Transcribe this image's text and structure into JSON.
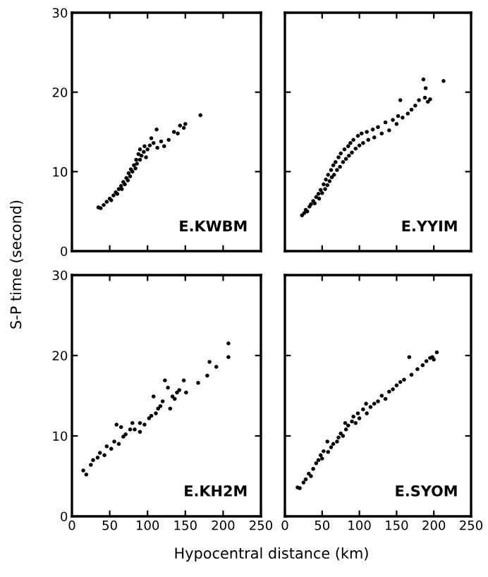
{
  "chart_data": [
    {
      "type": "scatter",
      "ylabel": "S-P time (second)",
      "annotations": [
        "E.KWBM"
      ],
      "xlim": [
        0,
        250
      ],
      "ylim": [
        0,
        30
      ],
      "xticks": [
        0,
        50,
        100,
        150,
        200,
        250
      ],
      "yticks": [
        0,
        10,
        20,
        30
      ],
      "tick_labels": "y",
      "marker": "circle",
      "grid": false,
      "series": [
        {
          "color": "#000000",
          "x": [
            35,
            38,
            42,
            46,
            50,
            52,
            55,
            58,
            60,
            62,
            65,
            66,
            68,
            70,
            72,
            74,
            75,
            77,
            78,
            80,
            82,
            84,
            85,
            86,
            88,
            90,
            90,
            92,
            95,
            96,
            98,
            100,
            103,
            105,
            108,
            112,
            113,
            118,
            122,
            128,
            135,
            140,
            143,
            148,
            150,
            170
          ],
          "values": [
            5.5,
            5.4,
            5.8,
            6.2,
            6.6,
            6.4,
            7.0,
            7.4,
            7.2,
            7.8,
            8.2,
            7.8,
            8.7,
            8.4,
            9.2,
            8.9,
            9.8,
            9.4,
            10.3,
            10.0,
            10.8,
            10.4,
            11.5,
            11.0,
            12.2,
            11.5,
            12.8,
            12.0,
            12.5,
            13.2,
            11.8,
            12.8,
            13.3,
            14.2,
            13.6,
            15.3,
            13.0,
            13.8,
            13.2,
            14.0,
            15.0,
            14.8,
            15.8,
            15.5,
            16.0,
            17.1
          ]
        }
      ]
    },
    {
      "type": "scatter",
      "annotations": [
        "E.YYIM"
      ],
      "xlim": [
        0,
        250
      ],
      "ylim": [
        0,
        30
      ],
      "xticks": [
        0,
        50,
        100,
        150,
        200,
        250
      ],
      "yticks": [
        0,
        10,
        20,
        30
      ],
      "tick_labels": false,
      "marker": "circle",
      "grid": false,
      "series": [
        {
          "color": "#000000",
          "x": [
            23,
            26,
            28,
            30,
            33,
            35,
            38,
            40,
            42,
            45,
            46,
            48,
            50,
            52,
            54,
            55,
            57,
            58,
            60,
            62,
            63,
            65,
            66,
            68,
            70,
            72,
            74,
            75,
            78,
            80,
            82,
            85,
            86,
            88,
            90,
            92,
            95,
            98,
            100,
            103,
            105,
            110,
            112,
            118,
            120,
            125,
            130,
            135,
            140,
            145,
            150,
            152,
            155,
            158,
            165,
            170,
            175,
            180,
            186,
            188,
            189,
            192,
            195,
            213
          ],
          "values": [
            4.5,
            4.8,
            5.2,
            5.0,
            5.6,
            5.9,
            6.3,
            6.0,
            6.8,
            7.2,
            6.6,
            7.7,
            7.3,
            8.4,
            7.8,
            9.0,
            8.3,
            9.6,
            8.8,
            10.2,
            9.3,
            10.8,
            9.6,
            11.2,
            10.2,
            11.8,
            10.6,
            12.3,
            11.2,
            12.8,
            11.6,
            13.2,
            12.0,
            13.6,
            12.4,
            14.0,
            12.9,
            14.5,
            13.3,
            14.8,
            13.6,
            15.0,
            14.0,
            15.3,
            14.3,
            15.6,
            14.8,
            16.2,
            15.2,
            16.5,
            16.0,
            17.0,
            19.0,
            16.8,
            17.3,
            17.8,
            18.3,
            19.0,
            21.6,
            19.3,
            20.5,
            18.8,
            19.1,
            21.4
          ]
        }
      ]
    },
    {
      "type": "scatter",
      "xlabel": "Hypocentral distance (km)",
      "annotations": [
        "E.KH2M"
      ],
      "xlim": [
        0,
        250
      ],
      "ylim": [
        0,
        30
      ],
      "xticks": [
        0,
        50,
        100,
        150,
        200,
        250
      ],
      "yticks": [
        0,
        10,
        20,
        30
      ],
      "marker": "circle",
      "grid": false,
      "series": [
        {
          "color": "#000000",
          "x": [
            15,
            19,
            25,
            28,
            34,
            37,
            43,
            46,
            52,
            56,
            59,
            62,
            65,
            68,
            71,
            77,
            80,
            83,
            90,
            90,
            96,
            102,
            105,
            108,
            111,
            114,
            117,
            120,
            123,
            127,
            130,
            133,
            136,
            139,
            142,
            148,
            151,
            167,
            179,
            182,
            191,
            207,
            207
          ],
          "values": [
            5.7,
            5.2,
            6.4,
            7.0,
            7.3,
            7.9,
            7.6,
            8.7,
            8.4,
            9.3,
            11.4,
            9.0,
            11.1,
            9.9,
            10.2,
            10.8,
            11.6,
            10.8,
            11.6,
            10.5,
            11.4,
            12.2,
            12.5,
            14.9,
            12.8,
            13.4,
            13.7,
            14.3,
            16.9,
            16.0,
            13.4,
            14.9,
            14.6,
            15.4,
            15.7,
            16.9,
            15.4,
            16.6,
            17.5,
            19.2,
            18.6,
            21.5,
            19.8
          ]
        }
      ]
    },
    {
      "type": "scatter",
      "annotations": [
        "E.SYOM"
      ],
      "xlim": [
        0,
        250
      ],
      "ylim": [
        0,
        30
      ],
      "xticks": [
        0,
        50,
        100,
        150,
        200,
        250
      ],
      "yticks": [
        0,
        10,
        20,
        30
      ],
      "tick_labels": "x",
      "marker": "circle",
      "grid": false,
      "series": [
        {
          "color": "#000000",
          "x": [
            17,
            20,
            25,
            28,
            32,
            35,
            38,
            42,
            45,
            48,
            50,
            52,
            57,
            58,
            62,
            65,
            70,
            72,
            75,
            78,
            81,
            82,
            85,
            90,
            92,
            95,
            98,
            100,
            105,
            109,
            110,
            115,
            120,
            125,
            130,
            135,
            140,
            145,
            150,
            155,
            160,
            167,
            170,
            178,
            185,
            190,
            195,
            198,
            200,
            204
          ],
          "values": [
            3.6,
            3.5,
            4.2,
            4.6,
            5.3,
            5.0,
            5.9,
            6.6,
            7.0,
            7.6,
            7.2,
            8.1,
            9.3,
            8.0,
            8.6,
            9.0,
            9.3,
            9.8,
            10.3,
            10.0,
            11.6,
            10.8,
            11.3,
            11.8,
            12.4,
            11.6,
            12.8,
            12.2,
            13.3,
            14.0,
            12.8,
            13.6,
            14.0,
            14.3,
            15.0,
            14.6,
            15.5,
            15.8,
            16.3,
            16.7,
            17.0,
            19.8,
            17.6,
            18.3,
            18.8,
            19.3,
            19.7,
            19.8,
            19.5,
            20.4
          ]
        }
      ]
    }
  ]
}
